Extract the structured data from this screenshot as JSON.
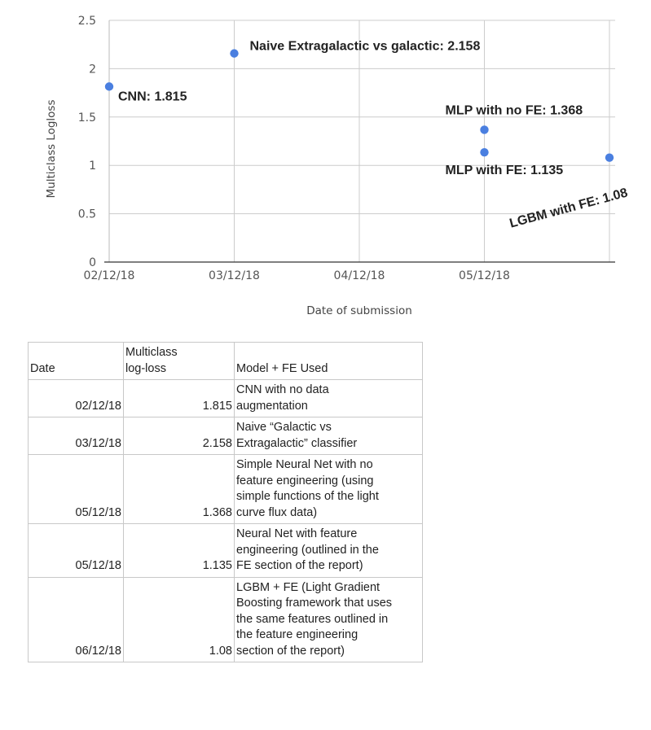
{
  "chart_data": {
    "type": "scatter",
    "title": "",
    "xlabel": "Date of submission",
    "ylabel": "Multiclass Logloss",
    "ylim": [
      0,
      2.5
    ],
    "yticks": [
      "0",
      "0.5",
      "1",
      "1.5",
      "2",
      "2.5"
    ],
    "xticks": [
      "02/12/18",
      "03/12/18",
      "04/12/18",
      "05/12/18"
    ],
    "xlim": [
      "02/12/18",
      "06/12/18"
    ],
    "grid": true,
    "point_color": "#4a7fe0",
    "points": [
      {
        "x": "02/12/18",
        "y": 1.815,
        "label": "CNN: 1.815"
      },
      {
        "x": "03/12/18",
        "y": 2.158,
        "label": "Naive Extragalactic vs galactic: 2.158"
      },
      {
        "x": "05/12/18",
        "y": 1.368,
        "label": "MLP with no FE: 1.368"
      },
      {
        "x": "05/12/18",
        "y": 1.135,
        "label": "MLP with FE: 1.135"
      },
      {
        "x": "06/12/18",
        "y": 1.08,
        "label": "LGBM with FE: 1.08"
      }
    ]
  },
  "table": {
    "headers": {
      "date": "Date",
      "loss_line1": "Multiclass",
      "loss_line2": "log-loss",
      "model": "Model + FE Used"
    },
    "rows": [
      {
        "date": "02/12/18",
        "loss": "1.815",
        "model": [
          "CNN with no data",
          "augmentation"
        ]
      },
      {
        "date": "03/12/18",
        "loss": "2.158",
        "model": [
          "Naive “Galactic vs",
          "Extragalactic” classifier"
        ]
      },
      {
        "date": "05/12/18",
        "loss": "1.368",
        "model": [
          "Simple Neural Net with no",
          "feature engineering (using",
          "simple functions of the light",
          "curve flux data)"
        ]
      },
      {
        "date": "05/12/18",
        "loss": "1.135",
        "model": [
          "Neural Net with feature",
          "engineering (outlined in the",
          "FE section of the report)"
        ]
      },
      {
        "date": "06/12/18",
        "loss": "1.08",
        "model": [
          "LGBM + FE (Light Gradient",
          "Boosting framework that uses",
          "the same features outlined in",
          "the feature engineering",
          "section of the report)"
        ]
      }
    ]
  }
}
